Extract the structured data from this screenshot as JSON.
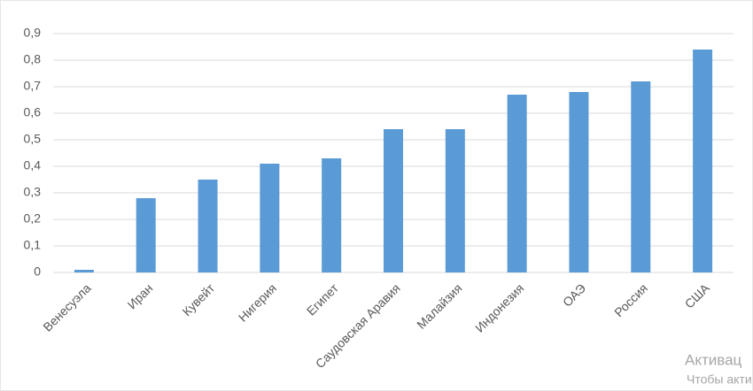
{
  "chart_data": {
    "type": "bar",
    "categories": [
      "Венесуэла",
      "Иран",
      "Кувейт",
      "Нигерия",
      "Египет",
      "Саудовская Аравия",
      "Малайзия",
      "Индонезия",
      "ОАЭ",
      "Россия",
      "США"
    ],
    "values": [
      0.01,
      0.28,
      0.35,
      0.41,
      0.43,
      0.54,
      0.54,
      0.67,
      0.68,
      0.72,
      0.84
    ],
    "color": "#5b9bd5",
    "ylim": [
      0,
      0.9
    ],
    "yticks": [
      0,
      {
        "value": 0.1,
        "label": "0,1"
      },
      {
        "value": 0.2,
        "label": "0,2"
      },
      {
        "value": 0.3,
        "label": "0,3"
      },
      {
        "value": 0.4,
        "label": "0,4"
      },
      {
        "value": 0.5,
        "label": "0,5"
      },
      {
        "value": 0.6,
        "label": "0,6"
      },
      {
        "value": 0.7,
        "label": "0,7"
      },
      {
        "value": 0.8,
        "label": "0,8"
      },
      {
        "value": 0.9,
        "label": "0,9"
      }
    ],
    "grid": true
  },
  "watermark": [
    "Активац",
    "Чтобы акти"
  ]
}
